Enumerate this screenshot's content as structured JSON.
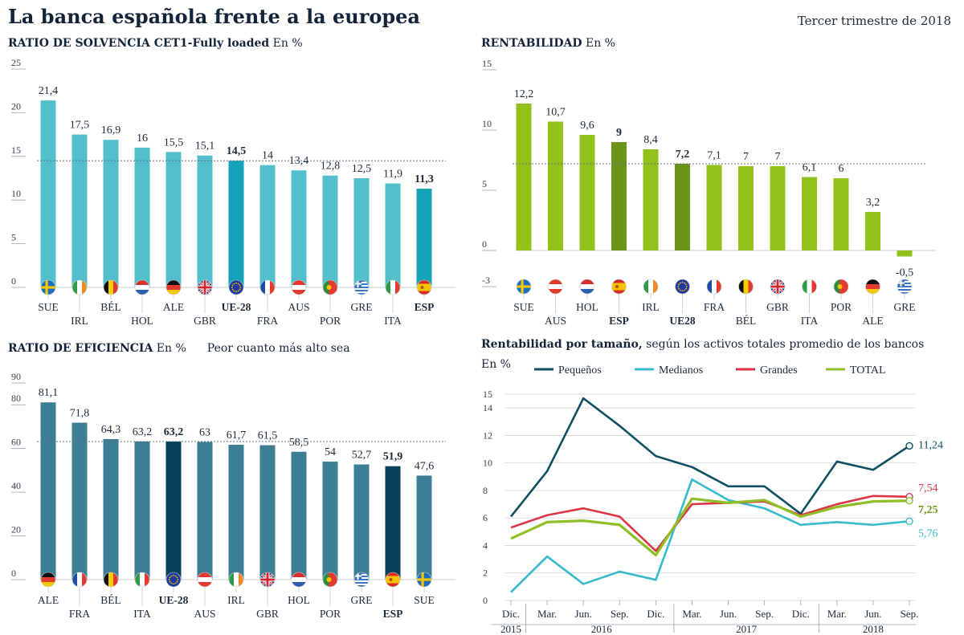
{
  "header": {
    "title": "La banca española frente a la europea",
    "period": "Tercer trimestre de 2018"
  },
  "colors": {
    "solvency_bar": "#53bfcd",
    "solvency_highlight": "#16a2b8",
    "profit_bar": "#92c11c",
    "profit_highlight": "#6c941a",
    "efficiency_bar": "#3d7e96",
    "efficiency_highlight": "#06405a",
    "pequenos": "#0f4f61",
    "medianos": "#37bacb",
    "grandes": "#dc3545",
    "total": "#8fbe25"
  },
  "chart_data": [
    {
      "id": "solvency",
      "type": "bar",
      "title": "RATIO DE SOLVENCIA CET1-Fully loaded",
      "unit": "En %",
      "categories": [
        "SUE",
        "IRL",
        "BÉL",
        "HOL",
        "ALE",
        "GBR",
        "UE-28",
        "FRA",
        "AUS",
        "POR",
        "GRE",
        "ITA",
        "ESP"
      ],
      "values": [
        21.4,
        17.5,
        16.9,
        16,
        15.5,
        15.1,
        14.5,
        14,
        13.4,
        12.8,
        12.5,
        11.9,
        11.3
      ],
      "value_labels": [
        "21,4",
        "17,5",
        "16,9",
        "16",
        "15,5",
        "15,1",
        "14,5",
        "14",
        "13,4",
        "12,8",
        "12,5",
        "11,9",
        "11,3"
      ],
      "highlight": [
        "UE-28",
        "ESP"
      ],
      "flags": [
        "sweden-flag-icon",
        "ireland-flag-icon",
        "belgium-flag-icon",
        "netherlands-flag-icon",
        "germany-flag-icon",
        "uk-flag-icon",
        "eu-flag-icon",
        "france-flag-icon",
        "austria-flag-icon",
        "portugal-flag-icon",
        "greece-flag-icon",
        "italy-flag-icon",
        "spain-flag-icon"
      ],
      "yticks": [
        0,
        5,
        10,
        15,
        20,
        25
      ],
      "ytick_labels": [
        "0",
        "5",
        "10",
        "15",
        "20",
        "25"
      ],
      "ylim": [
        0,
        25
      ],
      "reference_line": 14.5
    },
    {
      "id": "profit",
      "type": "bar",
      "title": "RENTABILIDAD",
      "unit": "En %",
      "categories": [
        "SUE",
        "AUS",
        "HOL",
        "ESP",
        "IRL",
        "UE28",
        "FRA",
        "BÉL",
        "GBR",
        "ITA",
        "POR",
        "ALE",
        "GRE"
      ],
      "values": [
        12.2,
        10.7,
        9.6,
        9,
        8.4,
        7.2,
        7.1,
        7,
        7,
        6.1,
        6,
        3.2,
        -0.5
      ],
      "value_labels": [
        "12,2",
        "10,7",
        "9,6",
        "9",
        "8,4",
        "7,2",
        "7,1",
        "7",
        "7",
        "6,1",
        "6",
        "3,2",
        "-0,5"
      ],
      "highlight": [
        "ESP",
        "UE28"
      ],
      "flags": [
        "sweden-flag-icon",
        "austria-flag-icon",
        "netherlands-flag-icon",
        "spain-flag-icon",
        "ireland-flag-icon",
        "eu-flag-icon",
        "france-flag-icon",
        "belgium-flag-icon",
        "uk-flag-icon",
        "italy-flag-icon",
        "portugal-flag-icon",
        "germany-flag-icon",
        "greece-flag-icon"
      ],
      "yticks": [
        -3,
        0,
        5,
        10,
        15
      ],
      "ytick_labels": [
        "-3",
        "0",
        "5",
        "10",
        "15"
      ],
      "ylim": [
        -3,
        15
      ],
      "reference_line": 7.2
    },
    {
      "id": "efficiency",
      "type": "bar",
      "title": "RATIO DE EFICIENCIA",
      "unit": "En %",
      "note": "Peor cuanto más alto sea",
      "categories": [
        "ALE",
        "FRA",
        "BÉL",
        "ITA",
        "UE-28",
        "AUS",
        "IRL",
        "GBR",
        "HOL",
        "POR",
        "GRE",
        "ESP",
        "SUE"
      ],
      "values": [
        81.1,
        71.8,
        64.3,
        63.2,
        63.2,
        63,
        61.7,
        61.5,
        58.5,
        54,
        52.7,
        51.9,
        47.6
      ],
      "value_labels": [
        "81,1",
        "71,8",
        "64,3",
        "63,2",
        "63,2",
        "63",
        "61,7",
        "61,5",
        "58,5",
        "54",
        "52,7",
        "51,9",
        "47,6"
      ],
      "highlight": [
        "UE-28",
        "ESP"
      ],
      "flags": [
        "germany-flag-icon",
        "france-flag-icon",
        "belgium-flag-icon",
        "italy-flag-icon",
        "eu-flag-icon",
        "austria-flag-icon",
        "ireland-flag-icon",
        "uk-flag-icon",
        "netherlands-flag-icon",
        "portugal-flag-icon",
        "greece-flag-icon",
        "spain-flag-icon",
        "sweden-flag-icon"
      ],
      "yticks": [
        0,
        20,
        40,
        60,
        80,
        90
      ],
      "ytick_labels": [
        "0",
        "20",
        "40",
        "60",
        "80",
        "90"
      ],
      "ylim": [
        0,
        90
      ],
      "reference_line": 63.2
    },
    {
      "id": "size",
      "type": "line",
      "title": "Rentabilidad por tamaño,",
      "subtitle": "según los activos totales promedio de los bancos",
      "unit": "En %",
      "x_labels": [
        "Dic.",
        "Mar.",
        "Jun.",
        "Sep.",
        "Dic.",
        "Mar.",
        "Jun.",
        "Sep.",
        "Dic.",
        "Mar.",
        "Jun.",
        "Sep."
      ],
      "year_labels": [
        "2015",
        "2016",
        "2017",
        "2018"
      ],
      "yticks": [
        0,
        2,
        4,
        6,
        8,
        10,
        12,
        14,
        15
      ],
      "ytick_labels": [
        "0",
        "2",
        "4",
        "6",
        "8",
        "10",
        "12",
        "14",
        "15"
      ],
      "ylim": [
        0,
        15
      ],
      "series": [
        {
          "name": "Pequeños",
          "color_key": "pequenos",
          "values": [
            6.1,
            9.4,
            14.7,
            12.7,
            10.5,
            9.7,
            8.3,
            8.3,
            6.3,
            10.1,
            9.5,
            11.24
          ],
          "end_label": "11,24"
        },
        {
          "name": "Medianos",
          "color_key": "medianos",
          "values": [
            0.6,
            3.2,
            1.2,
            2.1,
            1.5,
            8.8,
            7.3,
            6.7,
            5.5,
            5.7,
            5.5,
            5.76
          ],
          "end_label": "5,76"
        },
        {
          "name": "Grandes",
          "color_key": "grandes",
          "values": [
            5.3,
            6.2,
            6.7,
            6.1,
            3.6,
            7.0,
            7.1,
            7.2,
            6.2,
            7.0,
            7.6,
            7.54
          ],
          "end_label": "7,54"
        },
        {
          "name": "TOTAL",
          "color_key": "total",
          "values": [
            4.5,
            5.7,
            5.8,
            5.5,
            3.3,
            7.4,
            7.1,
            7.3,
            6.1,
            6.8,
            7.2,
            7.25
          ],
          "end_label": "7,25"
        }
      ]
    }
  ]
}
